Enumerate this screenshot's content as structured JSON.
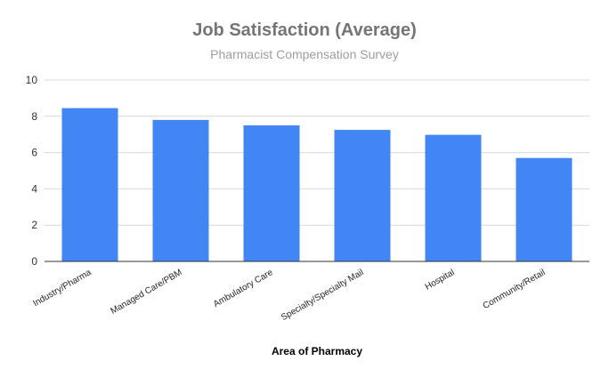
{
  "chart_data": {
    "type": "bar",
    "title": "Job Satisfaction (Average)",
    "subtitle": "Pharmacist Compensation Survey",
    "xlabel": "Area of Pharmacy",
    "ylabel": "",
    "ylim": [
      0,
      10
    ],
    "yticks": [
      0,
      2,
      4,
      6,
      8,
      10
    ],
    "grid": true,
    "legend": "none",
    "categories": [
      "Industry/Pharma",
      "Managed Care/PBM",
      "Ambulatory Care",
      "Specialty/Specialty Mail",
      "Hospital",
      "Community/Retail"
    ],
    "values": [
      8.45,
      7.8,
      7.5,
      7.25,
      6.98,
      5.7
    ],
    "colors": {
      "bar": "#4285f4"
    }
  }
}
